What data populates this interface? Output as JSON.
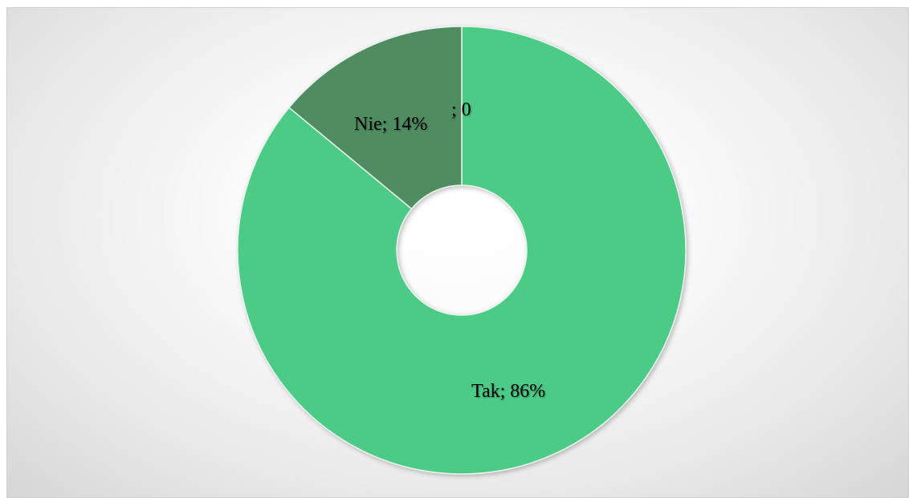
{
  "chart_data": {
    "type": "donut",
    "title": "",
    "slices": [
      {
        "label": "Tak",
        "value": 86,
        "display": "Tak; 86%",
        "color": "#4ccb86"
      },
      {
        "label": "Nie",
        "value": 14,
        "display": "Nie; 14%",
        "color": "#4f8d61"
      },
      {
        "label": "",
        "value": 0,
        "display": "; 0",
        "color": "#4ccb86"
      }
    ],
    "legend": "none"
  }
}
